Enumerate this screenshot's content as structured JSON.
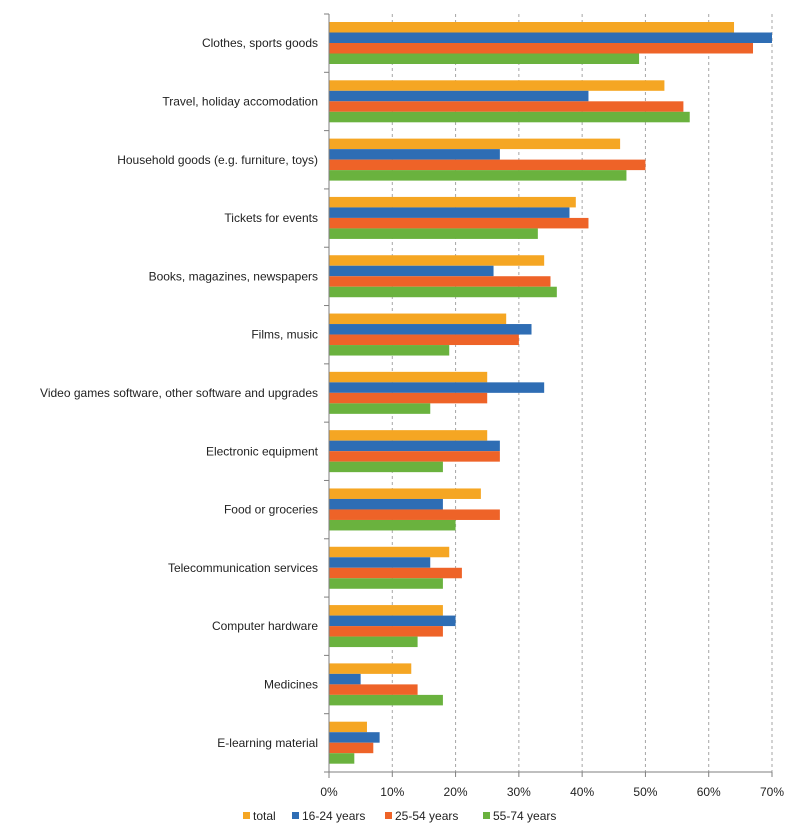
{
  "chart_data": {
    "type": "bar",
    "orientation": "horizontal",
    "categories": [
      "Clothes, sports goods",
      "Travel, holiday accomodation",
      "Household goods (e.g. furniture, toys)",
      "Tickets for events",
      "Books, magazines, newspapers",
      "Films, music",
      "Video games software, other software and upgrades",
      "Electronic equipment",
      "Food or groceries",
      "Telecommunication services",
      "Computer hardware",
      "Medicines",
      "E-learning material"
    ],
    "series": [
      {
        "name": "total",
        "color": "#f5a623",
        "values": [
          64,
          53,
          46,
          39,
          34,
          28,
          25,
          25,
          24,
          19,
          18,
          13,
          6
        ]
      },
      {
        "name": "16-24 years",
        "color": "#2e6db4",
        "values": [
          70,
          41,
          27,
          38,
          26,
          32,
          34,
          27,
          18,
          16,
          20,
          5,
          8
        ]
      },
      {
        "name": "25-54 years",
        "color": "#ee6328",
        "values": [
          67,
          56,
          50,
          41,
          35,
          30,
          25,
          27,
          27,
          21,
          18,
          14,
          7
        ]
      },
      {
        "name": "55-74 years",
        "color": "#6ab23e",
        "values": [
          49,
          57,
          47,
          33,
          36,
          19,
          16,
          18,
          20,
          18,
          14,
          18,
          4
        ]
      }
    ],
    "xlim": [
      0,
      70
    ],
    "xticks": [
      "0%",
      "10%",
      "20%",
      "30%",
      "40%",
      "50%",
      "60%",
      "70%"
    ],
    "grid": "vertical-dashed",
    "legend_position": "bottom"
  }
}
